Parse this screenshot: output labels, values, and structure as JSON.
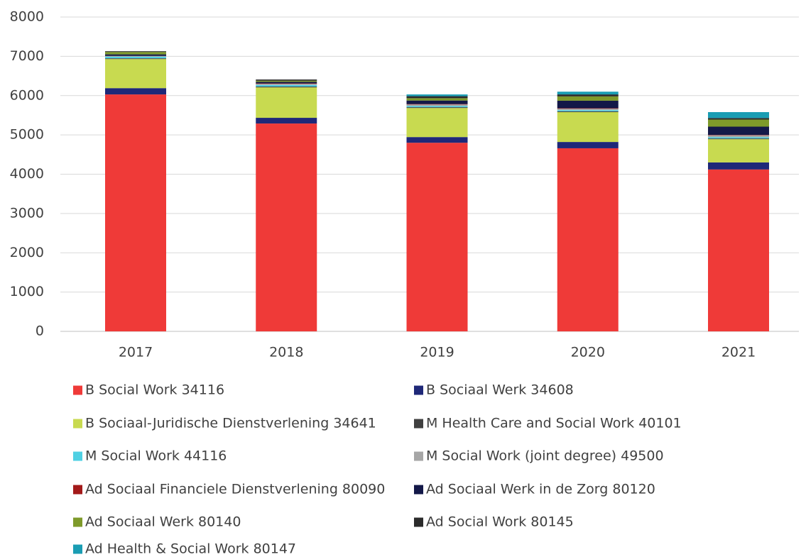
{
  "chart_data": {
    "type": "stacked_bar",
    "categories": [
      "2017",
      "2018",
      "2019",
      "2020",
      "2021"
    ],
    "series": [
      {
        "name": "B Social Work 34116",
        "color": "#ef3a38",
        "values": [
          6030,
          5290,
          4800,
          4660,
          4120
        ]
      },
      {
        "name": "B Sociaal Werk 34608",
        "color": "#1f2878",
        "values": [
          160,
          145,
          145,
          160,
          180
        ]
      },
      {
        "name": "B Sociaal-Juridische Dienstverlening 34641",
        "color": "#c8da50",
        "values": [
          740,
          775,
          740,
          760,
          590
        ]
      },
      {
        "name": "M Health Care and Social Work 40101",
        "color": "#404040",
        "values": [
          20,
          20,
          20,
          20,
          20
        ]
      },
      {
        "name": "M Social Work 44116",
        "color": "#4fd0e3",
        "values": [
          40,
          40,
          30,
          30,
          30
        ]
      },
      {
        "name": "M Social Work (joint degree) 49500",
        "color": "#a6a6a6",
        "values": [
          20,
          30,
          40,
          40,
          50
        ]
      },
      {
        "name": "Ad Sociaal Financiele Dienstverlening 80090",
        "color": "#a31a1a",
        "values": [
          0,
          10,
          10,
          10,
          10
        ]
      },
      {
        "name": "Ad Sociaal Werk in de Zorg 80120",
        "color": "#131848",
        "values": [
          40,
          40,
          90,
          190,
          210
        ]
      },
      {
        "name": "Ad Sociaal Werk 80140",
        "color": "#7e9a2a",
        "values": [
          60,
          30,
          60,
          110,
          180
        ]
      },
      {
        "name": "Ad Social Work 80145",
        "color": "#2b2b2b",
        "values": [
          20,
          30,
          50,
          50,
          40
        ]
      },
      {
        "name": "Ad Health & Social Work 80147",
        "color": "#1a9db3",
        "values": [
          0,
          0,
          45,
          70,
          150
        ]
      }
    ],
    "ylim": [
      0,
      8000
    ],
    "yticks": [
      0,
      1000,
      2000,
      3000,
      4000,
      5000,
      6000,
      7000,
      8000
    ],
    "grid": true
  }
}
